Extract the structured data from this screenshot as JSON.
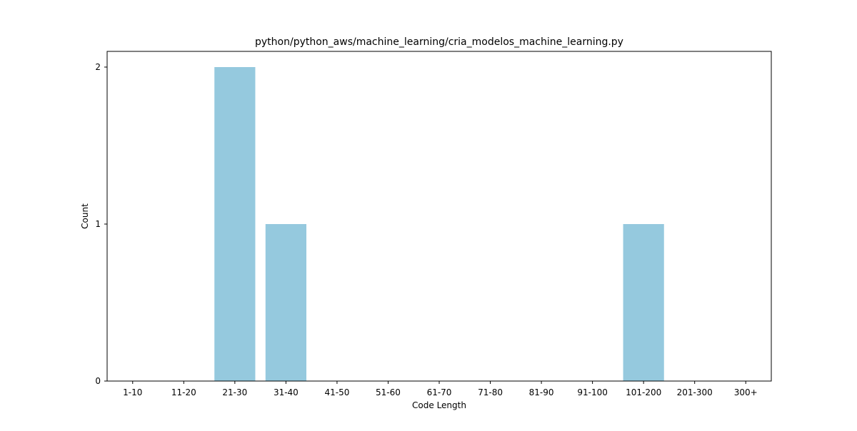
{
  "chart_data": {
    "type": "bar",
    "title": "python/python_aws/machine_learning/cria_modelos_machine_learning.py",
    "xlabel": "Code Length",
    "ylabel": "Count",
    "categories": [
      "1-10",
      "11-20",
      "21-30",
      "31-40",
      "41-50",
      "51-60",
      "61-70",
      "71-80",
      "81-90",
      "91-100",
      "101-200",
      "201-300",
      "300+"
    ],
    "values": [
      0,
      0,
      2,
      1,
      0,
      0,
      0,
      0,
      0,
      0,
      1,
      0,
      0
    ],
    "ylim": [
      0,
      2.1
    ],
    "yticks": [
      0,
      1,
      2
    ],
    "grid": false,
    "bar_color": "#95c9de"
  }
}
